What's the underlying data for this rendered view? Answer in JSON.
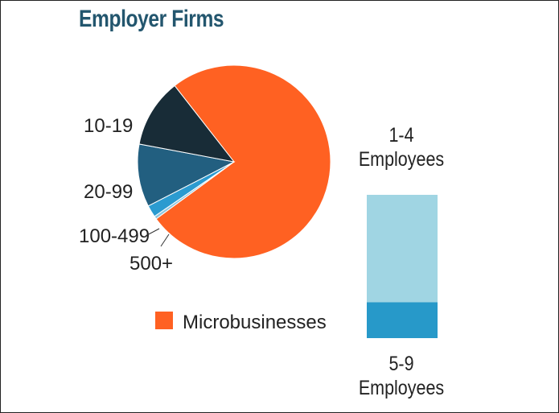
{
  "title": "Employer Firms",
  "colors": {
    "title": "#23566e",
    "micro": "#ff6122",
    "c10_19": "#182c37",
    "c20_99": "#225f80",
    "c100_499": "#2b9bd0",
    "c500": "#8fc7e0",
    "bar_top": "#a0d5e3",
    "bar_bottom": "#2799c9"
  },
  "chart_data": [
    {
      "type": "pie",
      "slices": [
        {
          "label": "Microbusinesses",
          "value": 75.5,
          "color": "#ff6122"
        },
        {
          "label": "500+",
          "value": 0.5,
          "color": "#8fc7e0"
        },
        {
          "label": "100-499",
          "value": 2.0,
          "color": "#2b9bd0"
        },
        {
          "label": "20-99",
          "value": 10.5,
          "color": "#225f80"
        },
        {
          "label": "10-19",
          "value": 11.5,
          "color": "#182c37"
        }
      ],
      "legend": {
        "label": "Microbusinesses",
        "placement": "bottom"
      }
    },
    {
      "type": "bar",
      "stacked": true,
      "segments": [
        {
          "label_line1": "1-4",
          "label_line2": "Employees",
          "value": 75,
          "color": "#a0d5e3"
        },
        {
          "label_line1": "5-9",
          "label_line2": "Employees",
          "value": 25,
          "color": "#2799c9"
        }
      ]
    }
  ]
}
